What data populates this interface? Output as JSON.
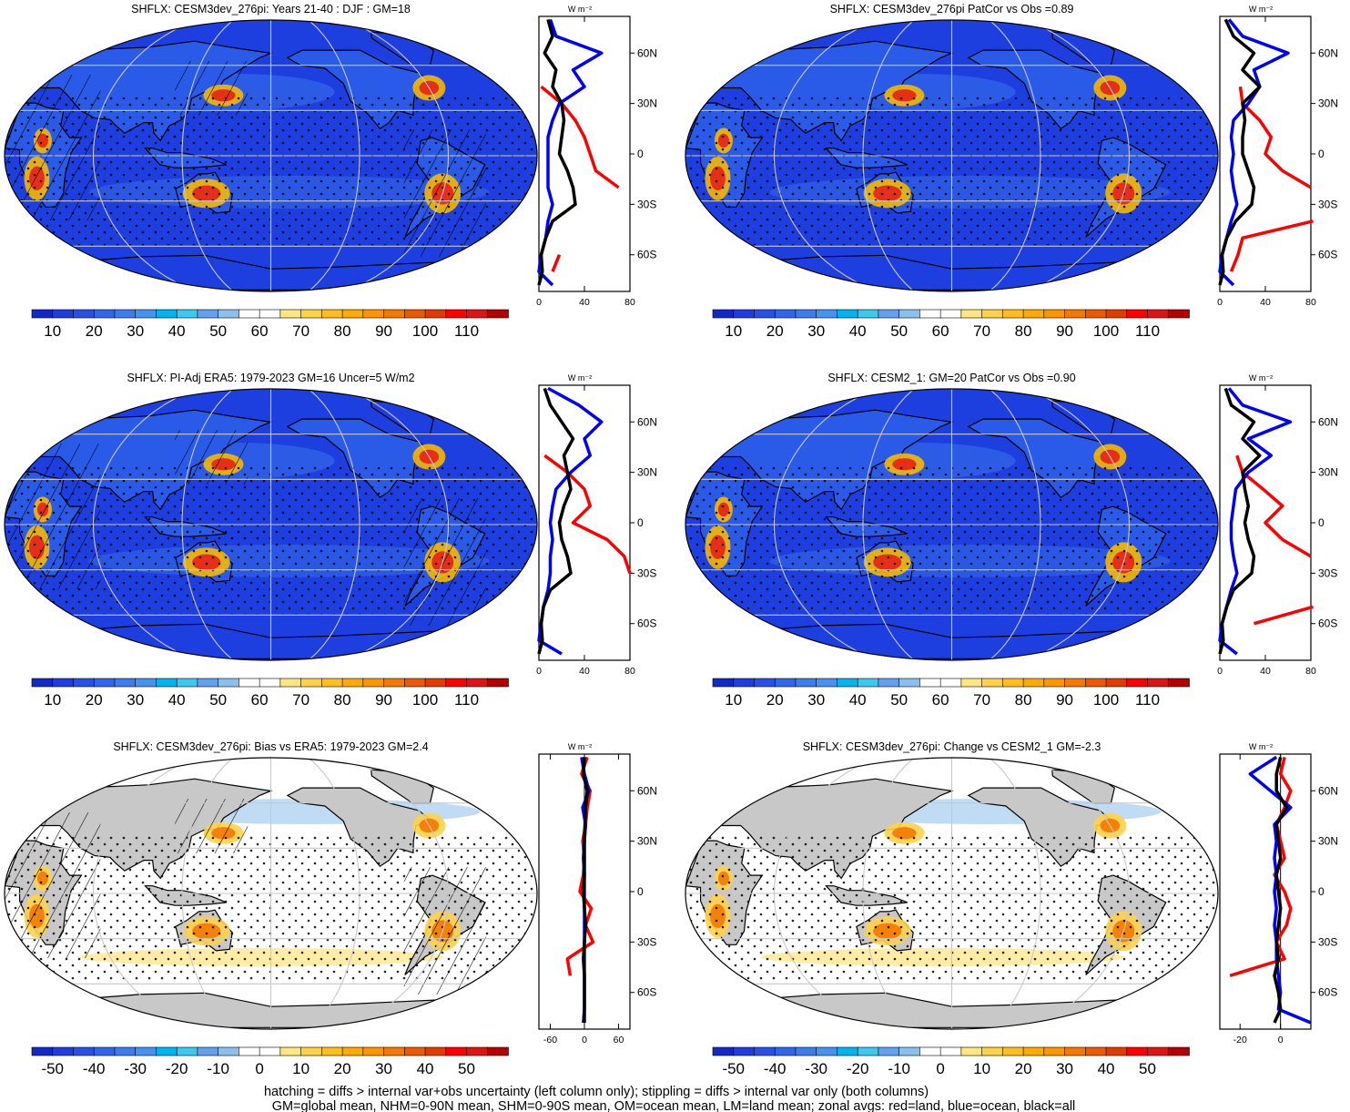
{
  "colors": {
    "ocean": "#1e3fe0",
    "ocean_light": "#3a78ec",
    "warm": "#f5b800",
    "hot": "#e8201c",
    "land_gray": "#c8c8c8",
    "zonal_land": "#ff0000",
    "zonal_ocean": "#0000ff",
    "zonal_all": "#000000",
    "grid": "#c8c8c8"
  },
  "abs_colorbar": {
    "colors": [
      "#1428c8",
      "#1e3ce0",
      "#2850e6",
      "#3266ea",
      "#3c7cee",
      "#4692f0",
      "#00b4f0",
      "#3cc8f0",
      "#64a0f0",
      "#8cc0ec",
      "#ffffff",
      "#ffffff",
      "#ffe680",
      "#ffd24a",
      "#ffbe1e",
      "#ffaa00",
      "#ff9600",
      "#f57800",
      "#eb5a00",
      "#e13c00",
      "#ff0000",
      "#dc1414",
      "#b40000"
    ],
    "labels": [
      "10",
      "20",
      "30",
      "40",
      "50",
      "60",
      "70",
      "80",
      "90",
      "100",
      "110"
    ]
  },
  "diff_colorbar": {
    "colors": [
      "#1428c8",
      "#1e3ce0",
      "#2850e6",
      "#3266ea",
      "#3c7cee",
      "#4692f0",
      "#00b4f0",
      "#3cc8f0",
      "#64a0f0",
      "#8cc0ec",
      "#ffffff",
      "#ffffff",
      "#ffe680",
      "#ffd24a",
      "#ffbe1e",
      "#ffaa00",
      "#ff9600",
      "#f57800",
      "#eb5a00",
      "#e13c00",
      "#ff0000",
      "#dc1414",
      "#b40000"
    ],
    "labels": [
      "-50",
      "-40",
      "-30",
      "-20",
      "-10",
      "0",
      "10",
      "20",
      "30",
      "40",
      "50"
    ]
  },
  "zonal_lat_labels": [
    "60N",
    "30N",
    "0",
    "30S",
    "60S"
  ],
  "zonal_unit": "W m⁻²",
  "footer": {
    "line1": "hatching = diffs > internal var+obs uncertainty (left column only); stippling = diffs > internal var only (both columns)",
    "line2": "GM=global mean, NHM=0-90N mean, SHM=0-90S mean, OM=ocean mean, LM=land mean; zonal avgs: red=land, blue=ocean, black=all"
  },
  "chart_data": [
    {
      "type": "heatmap",
      "title": "SHFLX: CESM3dev_276pi: Years 21-40 : DJF : GM=18",
      "field": "abs",
      "zonal": {
        "xticks": [
          "0",
          "40",
          "80"
        ],
        "xlim": [
          0,
          80
        ],
        "lat": [
          80,
          70,
          60,
          50,
          40,
          30,
          20,
          10,
          0,
          -10,
          -20,
          -30,
          -40,
          -50,
          -60,
          -70,
          -78
        ],
        "land": [
          null,
          null,
          null,
          null,
          2,
          20,
          32,
          40,
          45,
          50,
          70,
          null,
          null,
          null,
          18,
          12,
          null
        ],
        "ocean": [
          10,
          15,
          55,
          30,
          40,
          18,
          12,
          8,
          8,
          8,
          8,
          12,
          8,
          6,
          2,
          0,
          12
        ],
        "all": [
          8,
          12,
          5,
          15,
          12,
          20,
          22,
          20,
          18,
          25,
          30,
          32,
          12,
          6,
          2,
          3,
          0
        ]
      }
    },
    {
      "type": "heatmap",
      "title": "SHFLX: CESM3dev_276pi PatCor vs Obs =0.89",
      "field": "abs",
      "zonal": {
        "xticks": [
          "0",
          "40",
          "80"
        ],
        "xlim": [
          0,
          80
        ],
        "lat": [
          80,
          70,
          60,
          50,
          40,
          30,
          20,
          10,
          0,
          -10,
          -20,
          -30,
          -40,
          -50,
          -60,
          -70,
          -78
        ],
        "land": [
          null,
          null,
          null,
          null,
          18,
          20,
          35,
          45,
          40,
          55,
          80,
          null,
          82,
          20,
          16,
          10,
          null
        ],
        "ocean": [
          8,
          20,
          60,
          30,
          35,
          25,
          12,
          10,
          12,
          10,
          12,
          15,
          10,
          6,
          2,
          0,
          12
        ],
        "all": [
          5,
          12,
          30,
          20,
          35,
          20,
          22,
          20,
          20,
          25,
          30,
          28,
          14,
          6,
          2,
          3,
          0
        ]
      }
    },
    {
      "type": "heatmap",
      "title": "SHFLX: PI-Adj ERA5: 1979-2023 GM=16 Uncer=5 W/m2",
      "field": "abs",
      "zonal": {
        "xticks": [
          "0",
          "40",
          "80"
        ],
        "xlim": [
          0,
          80
        ],
        "lat": [
          80,
          70,
          60,
          50,
          40,
          30,
          20,
          10,
          0,
          -10,
          -20,
          -30,
          -40,
          -50,
          -60,
          -70,
          -78
        ],
        "land": [
          null,
          null,
          null,
          null,
          5,
          25,
          40,
          45,
          30,
          60,
          75,
          80,
          null,
          78,
          null,
          10,
          null
        ],
        "ocean": [
          8,
          35,
          55,
          40,
          45,
          28,
          15,
          12,
          10,
          12,
          10,
          10,
          8,
          4,
          2,
          0,
          20
        ],
        "all": [
          5,
          10,
          20,
          30,
          22,
          25,
          28,
          22,
          18,
          20,
          25,
          28,
          10,
          4,
          2,
          3,
          0
        ]
      }
    },
    {
      "type": "heatmap",
      "title": "SHFLX: CESM2_1: GM=20 PatCor vs Obs =0.90",
      "field": "abs",
      "zonal": {
        "xticks": [
          "0",
          "40",
          "80"
        ],
        "xlim": [
          0,
          80
        ],
        "lat": [
          80,
          70,
          60,
          50,
          40,
          30,
          20,
          10,
          0,
          -10,
          -20,
          -30,
          -40,
          -50,
          -60,
          -70,
          -78
        ],
        "land": [
          null,
          null,
          null,
          null,
          15,
          20,
          38,
          55,
          40,
          55,
          80,
          null,
          null,
          82,
          30,
          null,
          null
        ],
        "ocean": [
          8,
          20,
          62,
          25,
          45,
          25,
          14,
          12,
          10,
          10,
          12,
          15,
          10,
          6,
          2,
          0,
          15
        ],
        "all": [
          5,
          10,
          30,
          20,
          35,
          20,
          22,
          25,
          22,
          25,
          30,
          28,
          12,
          6,
          2,
          3,
          0
        ]
      }
    },
    {
      "type": "heatmap",
      "title": "SHFLX: CESM3dev_276pi: Bias vs ERA5: 1979-2023 GM=2.4",
      "field": "diff",
      "zonal": {
        "xticks": [
          "-60",
          "0",
          "60"
        ],
        "xlim": [
          -80,
          80
        ],
        "lat": [
          80,
          70,
          60,
          50,
          40,
          30,
          20,
          10,
          0,
          -10,
          -20,
          -30,
          -40,
          -50,
          -60,
          -70,
          -78
        ],
        "land": [
          5,
          -5,
          10,
          5,
          2,
          -3,
          0,
          -2,
          -8,
          12,
          2,
          15,
          -30,
          -25,
          null,
          8,
          null
        ],
        "ocean": [
          -5,
          0,
          8,
          -3,
          2,
          0,
          -2,
          0,
          0,
          0,
          0,
          0,
          0,
          0,
          0,
          0,
          -2
        ],
        "all": [
          0,
          -2,
          5,
          2,
          1,
          0,
          0,
          0,
          -2,
          0,
          2,
          0,
          -2,
          0,
          0,
          0,
          0
        ]
      }
    },
    {
      "type": "heatmap",
      "title": "SHFLX: CESM3dev_276pi: Change vs CESM2_1 GM=-2.3",
      "field": "diff",
      "zonal": {
        "xticks": [
          "-20",
          "0"
        ],
        "xlim": [
          -30,
          15
        ],
        "lat": [
          80,
          70,
          60,
          50,
          40,
          30,
          20,
          10,
          0,
          -10,
          -20,
          -30,
          -40,
          -50,
          -60,
          -70,
          -78
        ],
        "land": [
          2,
          0,
          5,
          2,
          -2,
          0,
          2,
          -3,
          2,
          5,
          3,
          -2,
          2,
          -25,
          null,
          -2,
          null
        ],
        "ocean": [
          -2,
          -15,
          -5,
          5,
          -3,
          -2,
          -3,
          -2,
          -3,
          -2,
          -3,
          -2,
          -2,
          -1,
          0,
          -1,
          15
        ],
        "all": [
          0,
          -2,
          -2,
          3,
          -2,
          -1,
          0,
          -2,
          -1,
          0,
          -1,
          -2,
          -1,
          -3,
          -1,
          0,
          -3
        ]
      }
    }
  ]
}
